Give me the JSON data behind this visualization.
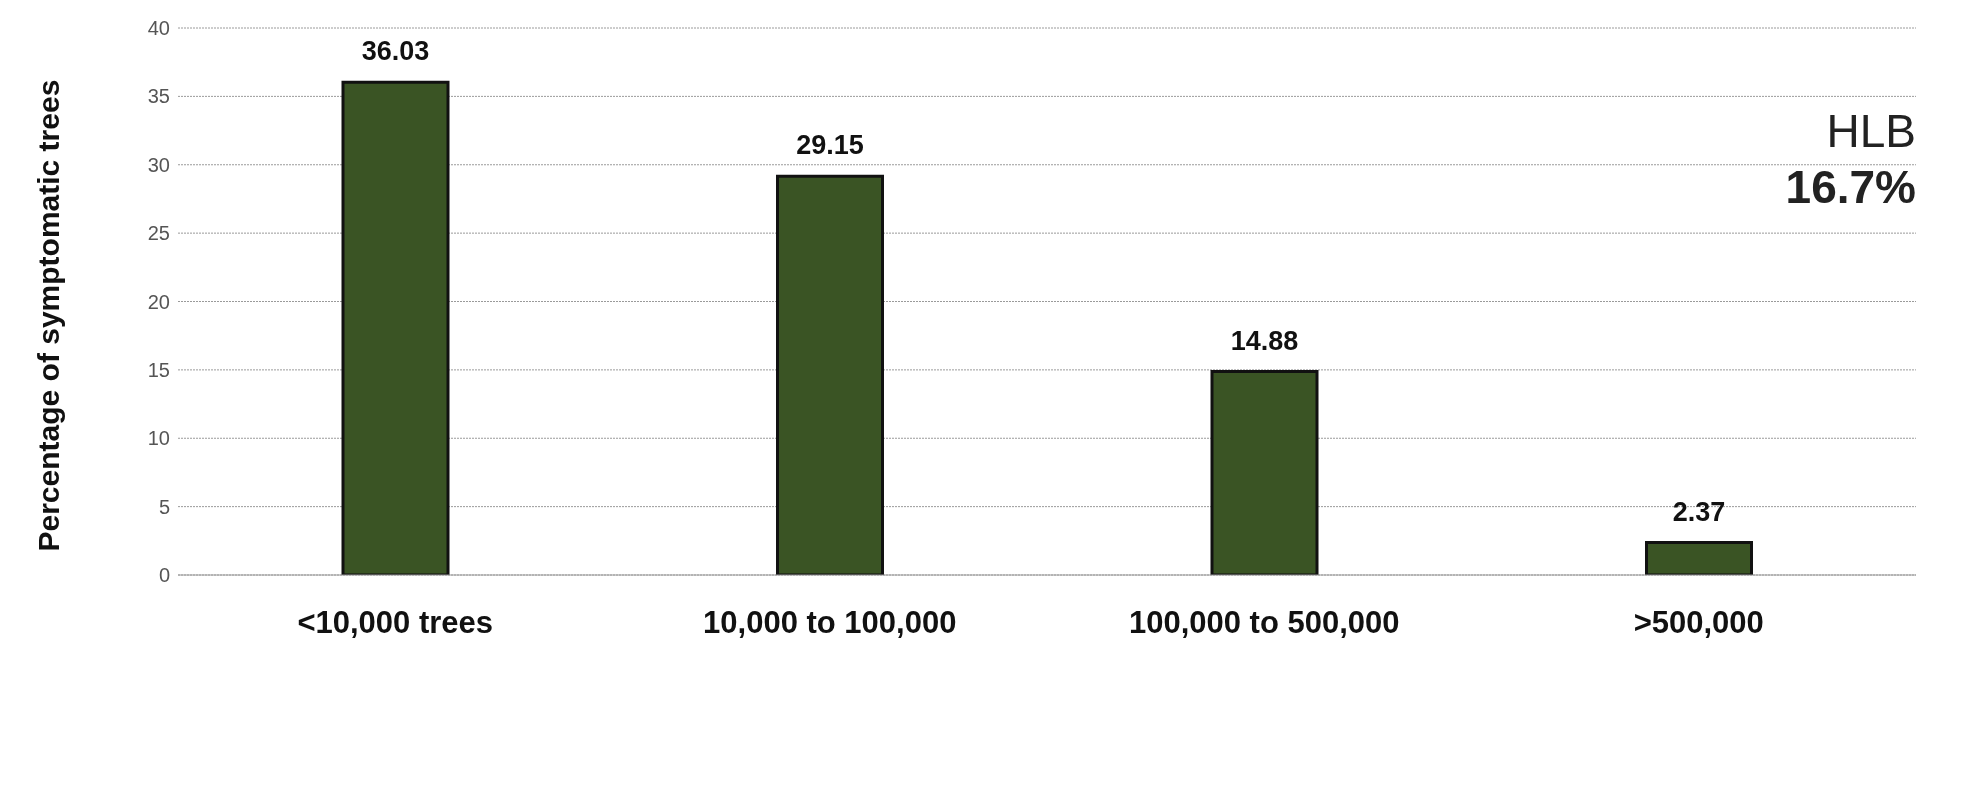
{
  "chart_data": {
    "type": "bar",
    "ylabel": "Percentage of symptomatic trees",
    "categories": [
      "<10,000 trees",
      "10,000 to 100,000",
      "100,000 to 500,000",
      ">500,000"
    ],
    "values": [
      36.03,
      29.15,
      14.88,
      2.37
    ],
    "color": "#3a5424",
    "ylim": [
      0,
      40
    ],
    "yticks": [
      0,
      5,
      10,
      15,
      20,
      25,
      30,
      35,
      40
    ],
    "grid": "y",
    "data_labels": true,
    "annotations": [
      "HLB",
      "16.7%"
    ]
  }
}
